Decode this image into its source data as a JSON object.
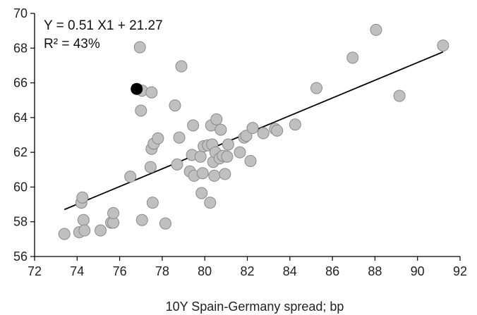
{
  "chart_data": {
    "type": "scatter",
    "title": "",
    "xlabel": "10Y Spain-Germany spread; bp",
    "ylabel": "",
    "xlim": [
      72,
      92
    ],
    "ylim": [
      56,
      70
    ],
    "xticks": [
      72,
      74,
      76,
      78,
      80,
      82,
      84,
      86,
      88,
      90,
      92
    ],
    "yticks": [
      56,
      58,
      60,
      62,
      64,
      66,
      68,
      70
    ],
    "grid": false,
    "annotations": {
      "equation": "Y = 0.51 X1 + 21.27",
      "r_squared": "R² = 43%"
    },
    "colors": {
      "points_fill": "#c0c0c0",
      "points_stroke": "#8a8a8a",
      "highlight": "#000000",
      "trendline": "#000000",
      "axis": "#000000"
    },
    "trendline": {
      "slope": 0.51,
      "intercept": 21.27,
      "x_range": [
        73.4,
        91.2
      ]
    },
    "highlight_point": {
      "x": 76.8,
      "y": 65.65
    },
    "series": [
      {
        "points": [
          [
            73.4,
            57.3
          ],
          [
            74.1,
            57.4
          ],
          [
            74.2,
            59.1
          ],
          [
            74.25,
            59.4
          ],
          [
            74.3,
            58.1
          ],
          [
            74.35,
            57.5
          ],
          [
            75.1,
            57.5
          ],
          [
            75.6,
            57.95
          ],
          [
            75.7,
            57.95
          ],
          [
            75.7,
            58.5
          ],
          [
            76.5,
            60.6
          ],
          [
            76.95,
            68.05
          ],
          [
            77.0,
            64.4
          ],
          [
            77.05,
            65.55
          ],
          [
            77.05,
            58.1
          ],
          [
            77.45,
            61.15
          ],
          [
            77.5,
            65.45
          ],
          [
            77.5,
            62.2
          ],
          [
            77.55,
            59.1
          ],
          [
            77.6,
            62.5
          ],
          [
            77.8,
            62.8
          ],
          [
            78.15,
            57.9
          ],
          [
            78.6,
            64.7
          ],
          [
            78.7,
            61.3
          ],
          [
            78.8,
            62.85
          ],
          [
            78.9,
            66.95
          ],
          [
            79.3,
            60.9
          ],
          [
            79.4,
            61.85
          ],
          [
            79.45,
            63.55
          ],
          [
            79.5,
            60.65
          ],
          [
            79.8,
            61.75
          ],
          [
            79.85,
            59.65
          ],
          [
            79.9,
            60.8
          ],
          [
            79.95,
            62.35
          ],
          [
            80.15,
            62.4
          ],
          [
            80.25,
            59.1
          ],
          [
            80.3,
            63.55
          ],
          [
            80.35,
            62.45
          ],
          [
            80.4,
            61.45
          ],
          [
            80.45,
            60.65
          ],
          [
            80.5,
            62.0
          ],
          [
            80.55,
            63.9
          ],
          [
            80.7,
            61.65
          ],
          [
            80.75,
            63.3
          ],
          [
            80.85,
            61.8
          ],
          [
            80.95,
            60.75
          ],
          [
            81.05,
            61.75
          ],
          [
            81.1,
            62.45
          ],
          [
            81.65,
            62.0
          ],
          [
            81.85,
            62.85
          ],
          [
            81.95,
            62.95
          ],
          [
            82.15,
            61.5
          ],
          [
            82.25,
            63.4
          ],
          [
            82.75,
            63.1
          ],
          [
            83.3,
            63.35
          ],
          [
            83.4,
            63.25
          ],
          [
            84.25,
            63.6
          ],
          [
            85.25,
            65.7
          ],
          [
            86.95,
            67.45
          ],
          [
            88.05,
            69.05
          ],
          [
            89.15,
            65.25
          ],
          [
            91.2,
            68.15
          ]
        ]
      }
    ]
  }
}
